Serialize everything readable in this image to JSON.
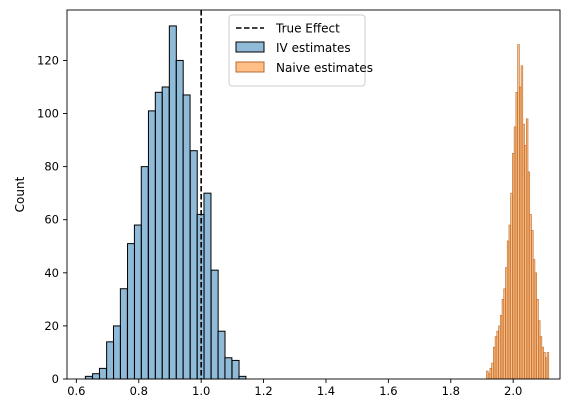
{
  "chart_data": {
    "type": "bar",
    "title": "",
    "xlabel": "",
    "ylabel": "Count",
    "xlim": [
      0.57,
      2.15
    ],
    "ylim": [
      0,
      139
    ],
    "x_ticks": [
      "0.6",
      "0.8",
      "1.0",
      "1.2",
      "1.4",
      "1.6",
      "1.8",
      "2.0"
    ],
    "y_ticks": [
      "0",
      "20",
      "40",
      "60",
      "80",
      "100",
      "120"
    ],
    "grid": false,
    "legend_position": "top-center",
    "reference_line": {
      "label": "True Effect",
      "x": 1.0,
      "color": "#000000",
      "style": "dashed"
    },
    "series": [
      {
        "name": "IV estimates",
        "color": "#1f77b4",
        "bin_width": 0.0224,
        "bins": [
          [
            0.629,
            1
          ],
          [
            0.652,
            2
          ],
          [
            0.674,
            4
          ],
          [
            0.697,
            14
          ],
          [
            0.719,
            20
          ],
          [
            0.741,
            34
          ],
          [
            0.764,
            51
          ],
          [
            0.786,
            58
          ],
          [
            0.808,
            80
          ],
          [
            0.831,
            101
          ],
          [
            0.853,
            108
          ],
          [
            0.875,
            110
          ],
          [
            0.898,
            133
          ],
          [
            0.92,
            120
          ],
          [
            0.942,
            107
          ],
          [
            0.965,
            86
          ],
          [
            0.987,
            62
          ],
          [
            1.009,
            70
          ],
          [
            1.032,
            41
          ],
          [
            1.054,
            18
          ],
          [
            1.076,
            8
          ],
          [
            1.099,
            7
          ],
          [
            1.121,
            1
          ]
        ]
      },
      {
        "name": "Naive estimates",
        "color": "#ff7f0e",
        "bin_width": 0.00555,
        "bins": [
          [
            1.9142,
            3
          ],
          [
            1.9198,
            2
          ],
          [
            1.9253,
            4
          ],
          [
            1.9309,
            6
          ],
          [
            1.9364,
            12
          ],
          [
            1.942,
            16
          ],
          [
            1.9475,
            18
          ],
          [
            1.9531,
            20
          ],
          [
            1.9586,
            24
          ],
          [
            1.9642,
            30
          ],
          [
            1.9697,
            34
          ],
          [
            1.9753,
            42
          ],
          [
            1.9808,
            52
          ],
          [
            1.9864,
            58
          ],
          [
            1.9919,
            70
          ],
          [
            1.9975,
            85
          ],
          [
            2.003,
            95
          ],
          [
            2.0086,
            108
          ],
          [
            2.0141,
            126
          ],
          [
            2.0197,
            110
          ],
          [
            2.0252,
            118
          ],
          [
            2.0308,
            96
          ],
          [
            2.0363,
            88
          ],
          [
            2.0419,
            98
          ],
          [
            2.0474,
            78
          ],
          [
            2.053,
            62
          ],
          [
            2.0585,
            56
          ],
          [
            2.0641,
            45
          ],
          [
            2.0696,
            40
          ],
          [
            2.0752,
            30
          ],
          [
            2.0807,
            22
          ],
          [
            2.0863,
            16
          ],
          [
            2.0918,
            12
          ],
          [
            2.0974,
            10
          ],
          [
            2.1029,
            8
          ],
          [
            2.1085,
            10
          ]
        ]
      }
    ]
  }
}
